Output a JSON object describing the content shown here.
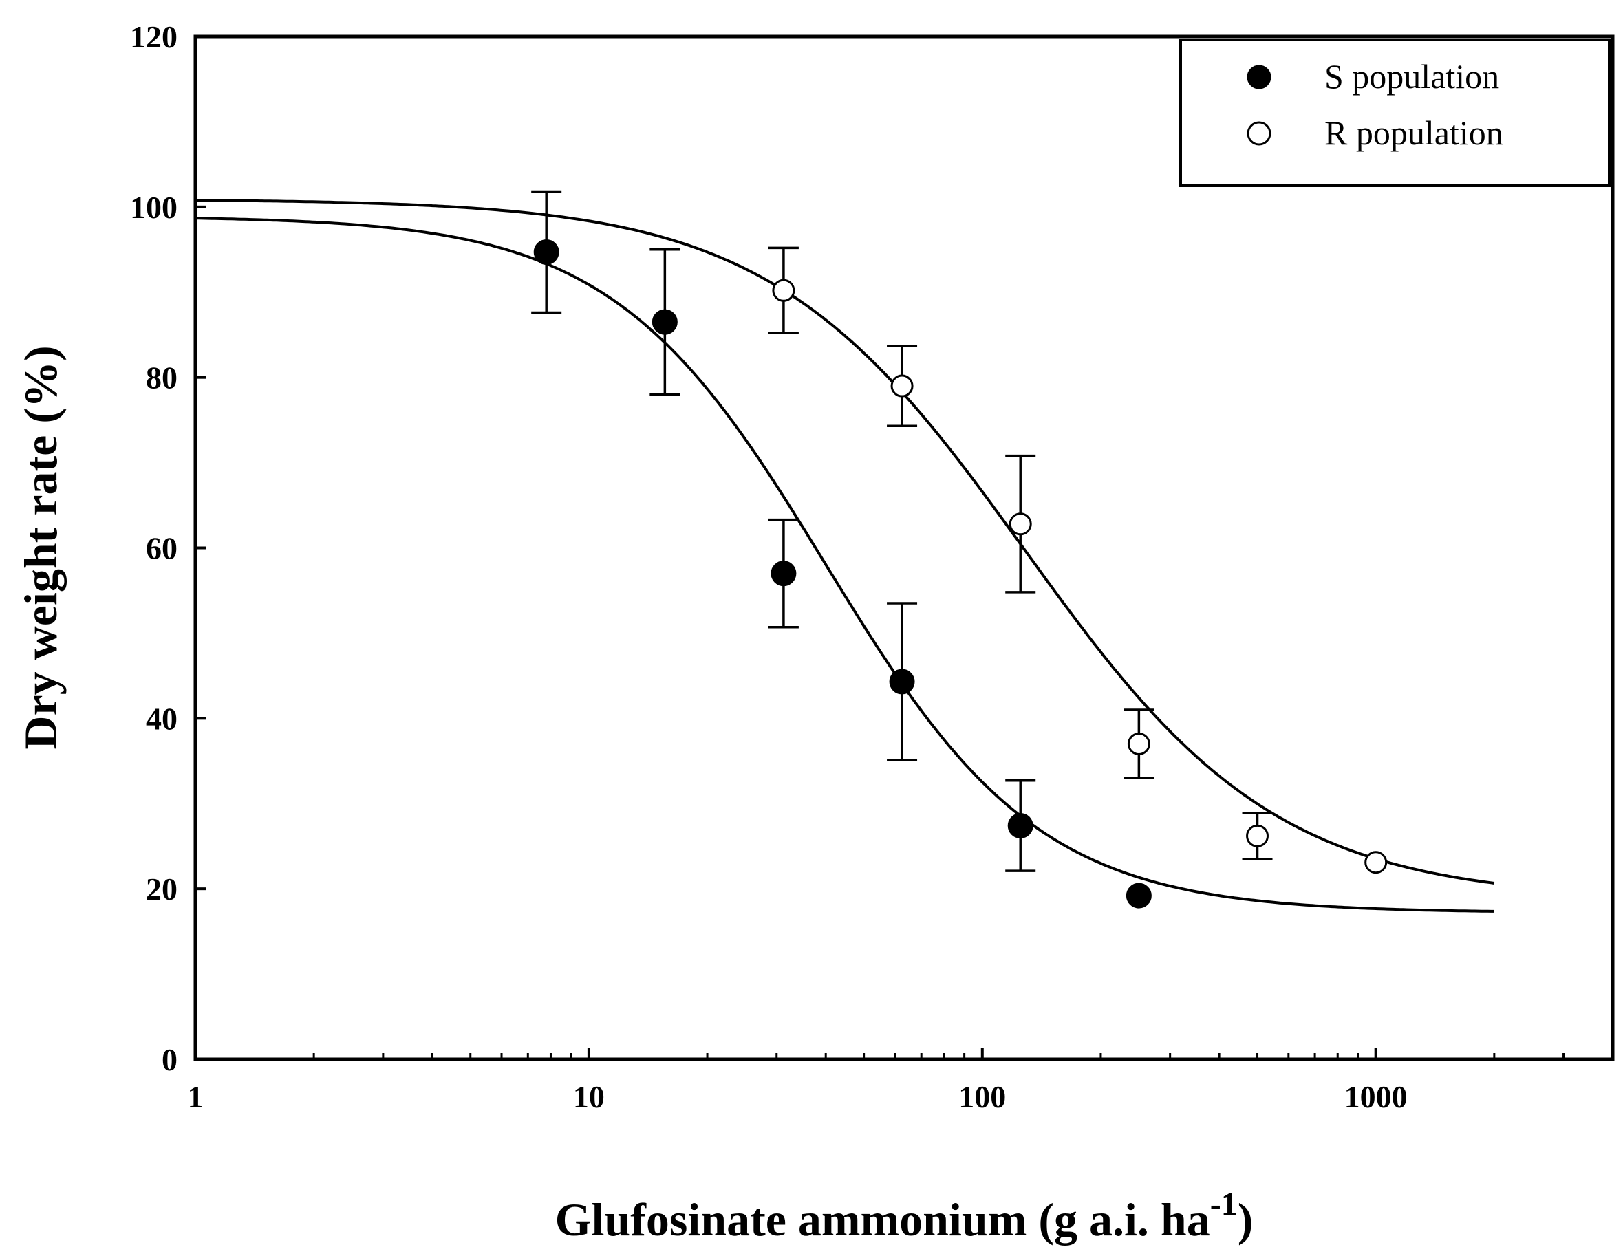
{
  "chart_data": {
    "type": "scatter",
    "title": "",
    "xlabel": "Glufosinate ammonium (g a.i. ha",
    "xlabel_superscript": "-1",
    "xlabel_close": ")",
    "ylabel": "Dry weight rate (%)",
    "xscale": "log",
    "xlim": [
      1,
      4000
    ],
    "ylim": [
      0,
      120
    ],
    "xticks": [
      {
        "value": 1,
        "label": "1"
      },
      {
        "value": 10,
        "label": "10"
      },
      {
        "value": 100,
        "label": "100"
      },
      {
        "value": 1000,
        "label": "1000"
      }
    ],
    "yticks": [
      {
        "value": 0,
        "label": "0"
      },
      {
        "value": 20,
        "label": "20"
      },
      {
        "value": 40,
        "label": "40"
      },
      {
        "value": 60,
        "label": "60"
      },
      {
        "value": 80,
        "label": "80"
      },
      {
        "value": 100,
        "label": "100"
      },
      {
        "value": 120,
        "label": "120"
      }
    ],
    "grid": false,
    "legend_position": "top-right",
    "series": [
      {
        "name": "S population",
        "marker": "filled-circle",
        "x": [
          7.8,
          15.6,
          31.25,
          62.5,
          125,
          250
        ],
        "y": [
          94.7,
          86.5,
          57.0,
          44.3,
          27.4,
          19.2
        ],
        "error": [
          7.1,
          8.5,
          6.3,
          9.2,
          5.3,
          0
        ],
        "fit": {
          "model": "log-logistic",
          "bottom": 17.2,
          "top": 98.9,
          "ec50": 40,
          "slope": 1.6
        }
      },
      {
        "name": "R population",
        "marker": "open-circle",
        "x": [
          31.25,
          62.5,
          125,
          250,
          500,
          1000
        ],
        "y": [
          90.2,
          79.0,
          62.8,
          37.0,
          26.2,
          23.1
        ],
        "error": [
          5.0,
          4.7,
          8.0,
          4.0,
          2.7,
          0
        ],
        "fit": {
          "model": "log-logistic",
          "bottom": 18.7,
          "top": 100.9,
          "ec50": 128,
          "slope": 1.35
        }
      }
    ]
  },
  "colors": {
    "ink": "#000000",
    "background": "#ffffff"
  }
}
